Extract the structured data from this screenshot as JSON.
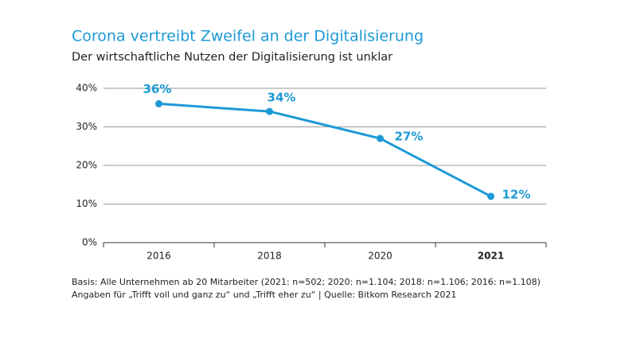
{
  "chart_data": {
    "type": "line",
    "title": "Corona vertreibt Zweifel an der Digitalisierung",
    "subtitle": "Der wirtschaftliche Nutzen der Digitalisierung ist unklar",
    "categories": [
      "2016",
      "2018",
      "2020",
      "2021"
    ],
    "series": [
      {
        "name": null,
        "color": "#1d9ad6",
        "values": [
          36,
          34,
          27,
          12
        ],
        "value_labels": [
          "36%",
          "34%",
          "27%",
          "12%"
        ]
      }
    ],
    "ylim": [
      0,
      40
    ],
    "yticks": [
      {
        "value": 0,
        "label": "0%"
      },
      {
        "value": 10,
        "label": "10%"
      },
      {
        "value": 20,
        "label": "20%"
      },
      {
        "value": 30,
        "label": "30%"
      },
      {
        "value": 40,
        "label": "40%"
      }
    ],
    "grid": true,
    "notes": [
      "Basis: Alle Unternehmen ab 20 Mitarbeiter (2021: n=502; 2020: n=1.104; 2018: n=1.106; 2016: n=1.108)",
      "Angaben für „Trifft voll und ganz zu“ und „Trifft eher zu“  |  Quelle: Bitkom Research 2021"
    ]
  }
}
